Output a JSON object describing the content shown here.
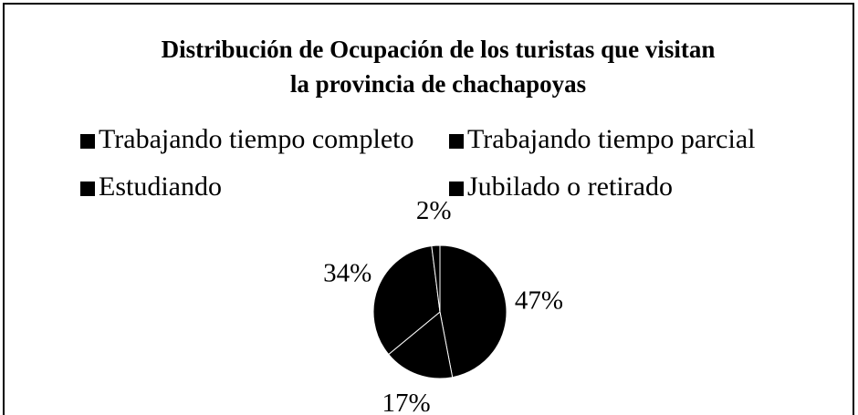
{
  "chart_data": {
    "type": "pie",
    "title": [
      "Distribución de Ocupación de los turistas que visitan",
      "la provincia de chachapoyas"
    ],
    "categories": [
      "Trabajando tiempo completo",
      "Trabajando tiempo parcial",
      "Estudiando",
      "Jubilado o retirado"
    ],
    "values": [
      47,
      17,
      34,
      2
    ],
    "value_labels": [
      "47%",
      "17%",
      "34%",
      "2%"
    ],
    "colors": [
      "#000000",
      "#000000",
      "#000000",
      "#000000"
    ],
    "legend": "top"
  }
}
